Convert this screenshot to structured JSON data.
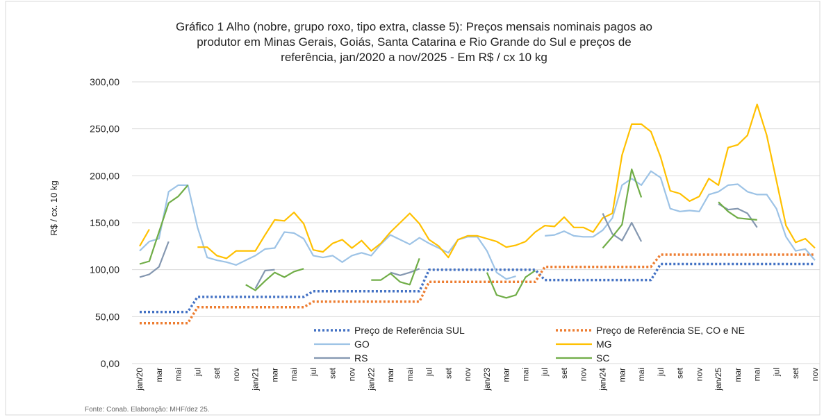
{
  "chart_data": {
    "type": "line",
    "title": [
      "Gráfico 1  Alho (nobre, grupo roxo, tipo extra, classe 5): Preços mensais nominais pagos ao",
      "produtor em Minas Gerais, Goiás, Santa Catarina e Rio Grande do Sul e preços de",
      "referência, jan/2020 a nov/2025 - Em R$ / cx 10 kg"
    ],
    "y_label": "R$ / cx. 10 kg",
    "source": "Fonte: Conab. Elaboração: MHF/dez 25.",
    "categories": [
      "jan/20",
      null,
      "mar",
      null,
      "mai",
      null,
      "jul",
      null,
      "set",
      null,
      "nov",
      null,
      "jan/21",
      null,
      "mar",
      null,
      "mai",
      null,
      "jul",
      null,
      "set",
      null,
      "nov",
      null,
      "jan/22",
      null,
      "mar",
      null,
      "mai",
      null,
      "jul",
      null,
      "set",
      null,
      "nov",
      null,
      "jan/23",
      null,
      "mar",
      null,
      "mai",
      null,
      "jul",
      null,
      "set",
      null,
      "nov",
      null,
      "jan/24",
      null,
      "mar",
      null,
      "mai",
      null,
      "jul",
      null,
      "set",
      null,
      "nov",
      null,
      "jan/25",
      null,
      "mar",
      null,
      "mai",
      null,
      "jul",
      null,
      "set",
      null,
      "nov"
    ],
    "ylim": [
      0,
      300
    ],
    "yticks": [
      {
        "value": 0,
        "label": "0,00"
      },
      {
        "value": 50,
        "label": "50,00"
      },
      {
        "value": 100,
        "label": "100,00"
      },
      {
        "value": 150,
        "label": "150,00"
      },
      {
        "value": 200,
        "label": "200,00"
      },
      {
        "value": 250,
        "label": "250,00"
      },
      {
        "value": 300,
        "label": "300,00"
      }
    ],
    "grid": true,
    "series": [
      {
        "name": "Preço de Referência SUL",
        "color": "#4472c4",
        "dashed": true,
        "values": [
          55,
          55,
          55,
          55,
          55,
          55,
          71,
          71,
          71,
          71,
          71,
          71,
          71,
          71,
          71,
          71,
          71,
          71,
          77,
          77,
          77,
          77,
          77,
          77,
          77,
          77,
          77,
          77,
          77,
          77,
          100,
          100,
          100,
          100,
          100,
          100,
          100,
          100,
          100,
          100,
          100,
          100,
          89,
          89,
          89,
          89,
          89,
          89,
          89,
          89,
          89,
          89,
          89,
          89,
          106,
          106,
          106,
          106,
          106,
          106,
          106,
          106,
          106,
          106,
          106,
          106,
          106,
          106,
          106,
          106,
          106
        ]
      },
      {
        "name": "Preço de Referência SE, CO e NE",
        "color": "#ed7d31",
        "dashed": true,
        "values": [
          43,
          43,
          43,
          43,
          43,
          43,
          60,
          60,
          60,
          60,
          60,
          60,
          60,
          60,
          60,
          60,
          60,
          60,
          66,
          66,
          66,
          66,
          66,
          66,
          66,
          66,
          66,
          66,
          66,
          66,
          87,
          87,
          87,
          87,
          87,
          87,
          87,
          87,
          87,
          87,
          87,
          87,
          103,
          103,
          103,
          103,
          103,
          103,
          103,
          103,
          103,
          103,
          103,
          103,
          116,
          116,
          116,
          116,
          116,
          116,
          116,
          116,
          116,
          116,
          116,
          116,
          116,
          116,
          116,
          116,
          116
        ]
      },
      {
        "name": "GO",
        "color": "#9dc3e6",
        "values": [
          120,
          130,
          133,
          183,
          190,
          190,
          145,
          113,
          110,
          108,
          105,
          110,
          115,
          122,
          123,
          140,
          139,
          133,
          115,
          113,
          115,
          108,
          115,
          118,
          115,
          127,
          137,
          132,
          127,
          134,
          128,
          123,
          118,
          132,
          135,
          135,
          120,
          97,
          90,
          93,
          null,
          null,
          136,
          137,
          141,
          136,
          135,
          135,
          142,
          155,
          190,
          197,
          190,
          205,
          198,
          165,
          162,
          163,
          162,
          180,
          183,
          190,
          191,
          183,
          180,
          180,
          165,
          135,
          120,
          122,
          110
        ]
      },
      {
        "name": "MG",
        "color": "#ffc000",
        "values": [
          125,
          143,
          null,
          null,
          null,
          null,
          124,
          124,
          115,
          112,
          120,
          120,
          120,
          137,
          153,
          152,
          161,
          149,
          121,
          119,
          128,
          132,
          123,
          131,
          120,
          128,
          140,
          150,
          160,
          149,
          132,
          125,
          113,
          132,
          136,
          136,
          133,
          130,
          124,
          126,
          130,
          140,
          147,
          146,
          156,
          145,
          145,
          140,
          155,
          160,
          222,
          255,
          255,
          247,
          220,
          184,
          181,
          173,
          178,
          197,
          190,
          230,
          233,
          243,
          276,
          243,
          195,
          147,
          129,
          133,
          123
        ]
      },
      {
        "name": "RS",
        "color": "#8497b0",
        "values": [
          92,
          95,
          103,
          130,
          null,
          null,
          null,
          null,
          null,
          null,
          null,
          null,
          80,
          99,
          100,
          null,
          null,
          null,
          null,
          null,
          null,
          null,
          null,
          null,
          null,
          null,
          97,
          94,
          97,
          101,
          null,
          null,
          null,
          null,
          null,
          null,
          null,
          null,
          null,
          null,
          null,
          null,
          null,
          null,
          null,
          null,
          null,
          null,
          160,
          138,
          131,
          150,
          130,
          null,
          null,
          null,
          null,
          null,
          null,
          null,
          170,
          164,
          165,
          160,
          145,
          null,
          null,
          null,
          null,
          null,
          null
        ]
      },
      {
        "name": "SC",
        "color": "#70ad47",
        "values": [
          106,
          109,
          140,
          171,
          178,
          190,
          null,
          null,
          null,
          null,
          null,
          84,
          78,
          88,
          97,
          92,
          98,
          101,
          null,
          null,
          null,
          null,
          null,
          null,
          89,
          89,
          96,
          87,
          84,
          112,
          null,
          null,
          null,
          null,
          null,
          null,
          97,
          73,
          70,
          73,
          92,
          99,
          null,
          null,
          null,
          null,
          null,
          null,
          123,
          135,
          148,
          207,
          177,
          null,
          null,
          null,
          null,
          null,
          null,
          null,
          172,
          162,
          155,
          154,
          153,
          null,
          null,
          null,
          null,
          null,
          null
        ]
      }
    ]
  }
}
